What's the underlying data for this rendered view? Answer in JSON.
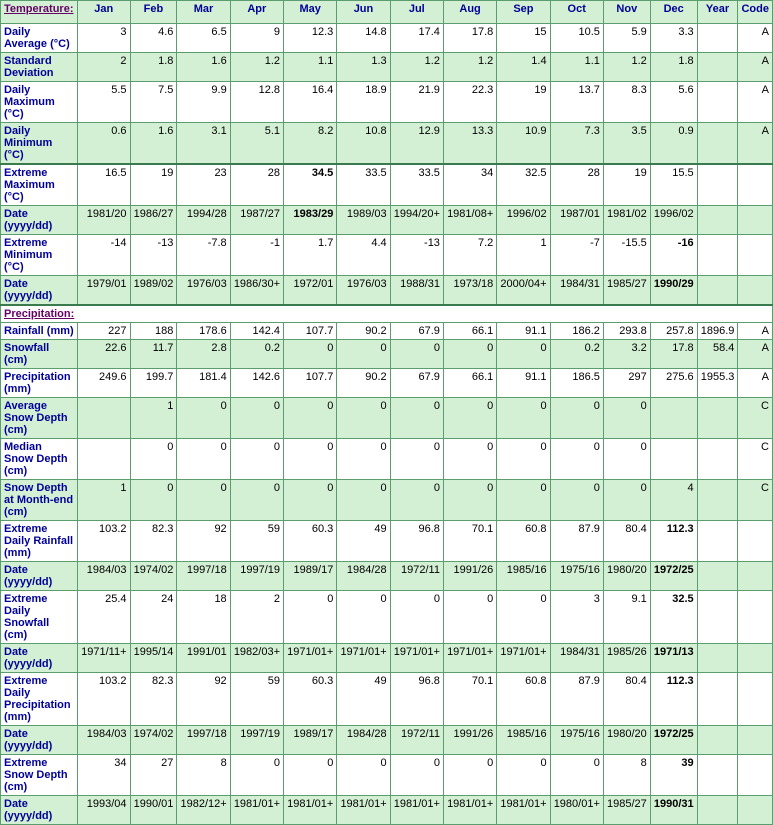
{
  "header": {
    "row_label_col": "",
    "months": [
      "Jan",
      "Feb",
      "Mar",
      "Apr",
      "May",
      "Jun",
      "Jul",
      "Aug",
      "Sep",
      "Oct",
      "Nov",
      "Dec",
      "Year",
      "Code"
    ]
  },
  "sections": {
    "temperature": "Temperature:",
    "precipitation": "Precipitation:"
  },
  "rows": [
    {
      "label": "Daily Average (°C)",
      "vals": [
        "3",
        "4.6",
        "6.5",
        "9",
        "12.3",
        "14.8",
        "17.4",
        "17.8",
        "15",
        "10.5",
        "5.9",
        "3.3",
        "",
        "A"
      ],
      "class": "odd"
    },
    {
      "label": "Standard Deviation",
      "vals": [
        "2",
        "1.8",
        "1.6",
        "1.2",
        "1.1",
        "1.3",
        "1.2",
        "1.2",
        "1.4",
        "1.1",
        "1.2",
        "1.8",
        "",
        "A"
      ],
      "class": "even"
    },
    {
      "label": "Daily Maximum (°C)",
      "vals": [
        "5.5",
        "7.5",
        "9.9",
        "12.8",
        "16.4",
        "18.9",
        "21.9",
        "22.3",
        "19",
        "13.7",
        "8.3",
        "5.6",
        "",
        "A"
      ],
      "class": "odd"
    },
    {
      "label": "Daily Minimum (°C)",
      "vals": [
        "0.6",
        "1.6",
        "3.1",
        "5.1",
        "8.2",
        "10.8",
        "12.9",
        "13.3",
        "10.9",
        "7.3",
        "3.5",
        "0.9",
        "",
        "A"
      ],
      "class": "even thick-bottom"
    },
    {
      "label": "Extreme Maximum (°C)",
      "vals": [
        "16.5",
        "19",
        "23",
        "28",
        "34.5",
        "33.5",
        "33.5",
        "34",
        "32.5",
        "28",
        "19",
        "15.5",
        "",
        ""
      ],
      "bold": [
        4
      ],
      "class": "odd"
    },
    {
      "label": "Date (yyyy/dd)",
      "vals": [
        "1981/20",
        "1986/27",
        "1994/28",
        "1987/27",
        "1983/29",
        "1989/03",
        "1994/20+",
        "1981/08+",
        "1996/02",
        "1987/01",
        "1981/02",
        "1996/02",
        "",
        ""
      ],
      "bold": [
        4
      ],
      "class": "even"
    },
    {
      "label": "Extreme Minimum (°C)",
      "vals": [
        "-14",
        "-13",
        "-7.8",
        "-1",
        "1.7",
        "4.4",
        "-13",
        "7.2",
        "1",
        "-7",
        "-15.5",
        "-16",
        "",
        ""
      ],
      "bold": [
        11
      ],
      "class": "odd"
    },
    {
      "label": "Date (yyyy/dd)",
      "vals": [
        "1979/01",
        "1989/02",
        "1976/03",
        "1986/30+",
        "1972/01",
        "1976/03",
        "1988/31",
        "1973/18",
        "2000/04+",
        "1984/31",
        "1985/27",
        "1990/29",
        "",
        ""
      ],
      "bold": [
        11
      ],
      "class": "even thick-bottom"
    }
  ],
  "precip_rows": [
    {
      "label": "Rainfall (mm)",
      "vals": [
        "227",
        "188",
        "178.6",
        "142.4",
        "107.7",
        "90.2",
        "67.9",
        "66.1",
        "91.1",
        "186.2",
        "293.8",
        "257.8",
        "1896.9",
        "A"
      ],
      "class": "odd"
    },
    {
      "label": "Snowfall (cm)",
      "vals": [
        "22.6",
        "11.7",
        "2.8",
        "0.2",
        "0",
        "0",
        "0",
        "0",
        "0",
        "0.2",
        "3.2",
        "17.8",
        "58.4",
        "A"
      ],
      "class": "even"
    },
    {
      "label": "Precipitation (mm)",
      "vals": [
        "249.6",
        "199.7",
        "181.4",
        "142.6",
        "107.7",
        "90.2",
        "67.9",
        "66.1",
        "91.1",
        "186.5",
        "297",
        "275.6",
        "1955.3",
        "A"
      ],
      "class": "odd"
    },
    {
      "label": "Average Snow Depth (cm)",
      "vals": [
        "",
        "1",
        "0",
        "0",
        "0",
        "0",
        "0",
        "0",
        "0",
        "0",
        "0",
        "",
        "",
        "C"
      ],
      "class": "even"
    },
    {
      "label": "Median Snow Depth (cm)",
      "vals": [
        "",
        "0",
        "0",
        "0",
        "0",
        "0",
        "0",
        "0",
        "0",
        "0",
        "0",
        "",
        "",
        "C"
      ],
      "class": "odd"
    },
    {
      "label": "Snow Depth at Month-end (cm)",
      "vals": [
        "1",
        "0",
        "0",
        "0",
        "0",
        "0",
        "0",
        "0",
        "0",
        "0",
        "0",
        "4",
        "",
        "C"
      ],
      "class": "even"
    },
    {
      "label": "Extreme Daily Rainfall (mm)",
      "vals": [
        "103.2",
        "82.3",
        "92",
        "59",
        "60.3",
        "49",
        "96.8",
        "70.1",
        "60.8",
        "87.9",
        "80.4",
        "112.3",
        "",
        ""
      ],
      "bold": [
        11
      ],
      "class": "odd"
    },
    {
      "label": "Date (yyyy/dd)",
      "vals": [
        "1984/03",
        "1974/02",
        "1997/18",
        "1997/19",
        "1989/17",
        "1984/28",
        "1972/11",
        "1991/26",
        "1985/16",
        "1975/16",
        "1980/20",
        "1972/25",
        "",
        ""
      ],
      "bold": [
        11
      ],
      "class": "even"
    },
    {
      "label": "Extreme Daily Snowfall (cm)",
      "vals": [
        "25.4",
        "24",
        "18",
        "2",
        "0",
        "0",
        "0",
        "0",
        "0",
        "3",
        "9.1",
        "32.5",
        "",
        ""
      ],
      "bold": [
        11
      ],
      "class": "odd"
    },
    {
      "label": "Date (yyyy/dd)",
      "vals": [
        "1971/11+",
        "1995/14",
        "1991/01",
        "1982/03+",
        "1971/01+",
        "1971/01+",
        "1971/01+",
        "1971/01+",
        "1971/01+",
        "1984/31",
        "1985/26",
        "1971/13",
        "",
        ""
      ],
      "bold": [
        11
      ],
      "class": "even"
    },
    {
      "label": "Extreme Daily Precipitation (mm)",
      "vals": [
        "103.2",
        "82.3",
        "92",
        "59",
        "60.3",
        "49",
        "96.8",
        "70.1",
        "60.8",
        "87.9",
        "80.4",
        "112.3",
        "",
        ""
      ],
      "bold": [
        11
      ],
      "class": "odd"
    },
    {
      "label": "Date (yyyy/dd)",
      "vals": [
        "1984/03",
        "1974/02",
        "1997/18",
        "1997/19",
        "1989/17",
        "1984/28",
        "1972/11",
        "1991/26",
        "1985/16",
        "1975/16",
        "1980/20",
        "1972/25",
        "",
        ""
      ],
      "bold": [
        11
      ],
      "class": "even"
    },
    {
      "label": "Extreme Snow Depth (cm)",
      "vals": [
        "34",
        "27",
        "8",
        "0",
        "0",
        "0",
        "0",
        "0",
        "0",
        "0",
        "8",
        "39",
        "",
        ""
      ],
      "bold": [
        11
      ],
      "class": "odd"
    },
    {
      "label": "Date (yyyy/dd)",
      "vals": [
        "1993/04",
        "1990/01",
        "1982/12+",
        "1981/01+",
        "1981/01+",
        "1981/01+",
        "1981/01+",
        "1981/01+",
        "1981/01+",
        "1980/01+",
        "1985/27",
        "1990/31",
        "",
        ""
      ],
      "bold": [
        11
      ],
      "class": "even"
    }
  ]
}
